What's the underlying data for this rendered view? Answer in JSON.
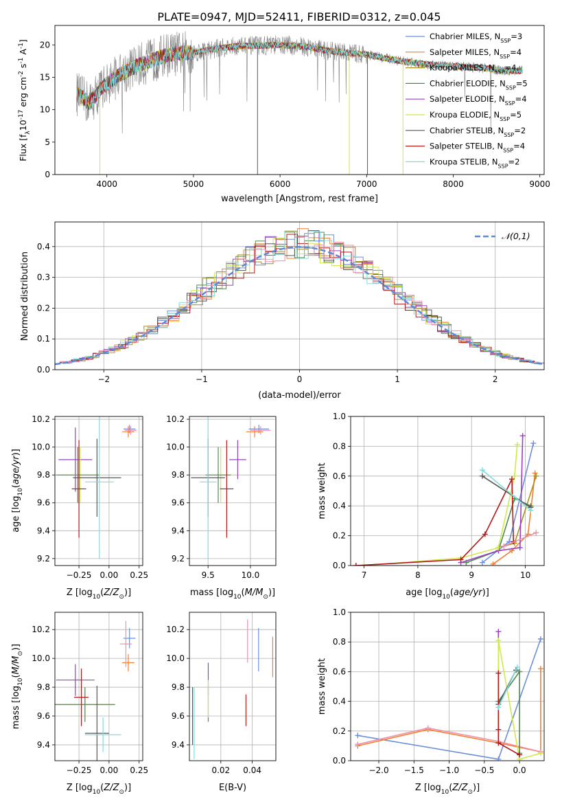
{
  "title": "PLATE=0947, MJD=52411, FIBERID=0312, z=0.045",
  "colors": [
    "#6b8fdc",
    "#f07f30",
    "#a8901a",
    "#4f8a4f",
    "#9a3fc4",
    "#cfe84a",
    "#555555",
    "#b01818",
    "#80dcdc",
    "#ef8fa8"
  ],
  "legend_spectrum": [
    {
      "label": "Chabrier MILES, N",
      "sub": "SSP",
      "tail": "=3",
      "color": "#6b8fdc"
    },
    {
      "label": "Salpeter MILES, N",
      "sub": "SSP",
      "tail": "=4",
      "color": "#f07f30"
    },
    {
      "label": "Kroupa MILES, N",
      "sub": "SSP",
      "tail": "=4",
      "color": "#a8901a"
    },
    {
      "label": "Chabrier ELODIE, N",
      "sub": "SSP",
      "tail": "=5",
      "color": "#4f8a4f"
    },
    {
      "label": "Salpeter ELODIE, N",
      "sub": "SSP",
      "tail": "=4",
      "color": "#9a3fc4"
    },
    {
      "label": "Kroupa ELODIE, N",
      "sub": "SSP",
      "tail": "=5",
      "color": "#cfe84a"
    },
    {
      "label": "Chabrier STELIB, N",
      "sub": "SSP",
      "tail": "=2",
      "color": "#555555"
    },
    {
      "label": "Salpeter STELIB, N",
      "sub": "SSP",
      "tail": "=4",
      "color": "#b01818"
    },
    {
      "label": "Kroupa STELIB, N",
      "sub": "SSP",
      "tail": "=2",
      "color": "#80dcdc"
    }
  ],
  "chart_data": [
    {
      "type": "line",
      "id": "spectrum",
      "xlabel": "wavelength [Angstrom, rest frame]",
      "ylabel_parts": [
        "Flux [f",
        "λ",
        "10",
        "-17",
        " erg cm",
        "-2",
        " s",
        "-1",
        " A",
        "-1",
        "]"
      ],
      "xlim": [
        3400,
        9050
      ],
      "ylim": [
        0,
        23
      ],
      "xticks": [
        4000,
        5000,
        6000,
        7000,
        8000,
        9000
      ],
      "yticks": [
        0,
        5,
        10,
        15,
        20
      ],
      "grid": false,
      "continuum": [
        [
          3650,
          12.5
        ],
        [
          3800,
          11
        ],
        [
          3950,
          13.5
        ],
        [
          4100,
          15
        ],
        [
          4300,
          16.5
        ],
        [
          4500,
          17.5
        ],
        [
          4700,
          18.5
        ],
        [
          5000,
          18.8
        ],
        [
          5300,
          19.5
        ],
        [
          5500,
          19.8
        ],
        [
          5800,
          19.9
        ],
        [
          6000,
          20
        ],
        [
          6300,
          19.7
        ],
        [
          6600,
          19
        ],
        [
          7000,
          18.5
        ],
        [
          7400,
          17.5
        ],
        [
          7700,
          17
        ],
        [
          8000,
          16.7
        ],
        [
          8300,
          16.5
        ],
        [
          8600,
          16
        ],
        [
          8800,
          16
        ]
      ],
      "notes": "observed spectrum (grey) with model fits; models overlap closely"
    },
    {
      "type": "step-histogram",
      "id": "residuals",
      "xlabel": "(data-model)/error",
      "ylabel": "Normed distribution",
      "xlim": [
        -2.5,
        2.5
      ],
      "ylim": [
        0,
        0.48
      ],
      "xticks": [
        -2,
        -1,
        0,
        1,
        2
      ],
      "yticks": [
        0.0,
        0.1,
        0.2,
        0.3,
        0.4
      ],
      "grid": true,
      "legend": "top-right",
      "reference_curve": {
        "label": "𝒩(0,1)",
        "mean": 0,
        "sigma": 1,
        "color": "#5b88d8"
      }
    },
    {
      "type": "errorbar",
      "id": "age-vs-Z",
      "xlabel": "Z [log10(Z/Z⊙)]",
      "ylabel": "age [log10(age/yr)]",
      "xlim": [
        -0.45,
        0.28
      ],
      "ylim": [
        9.15,
        10.22
      ],
      "xticks": [
        -0.25,
        0.0,
        0.25
      ],
      "yticks": [
        9.2,
        9.4,
        9.6,
        9.8,
        10.0,
        10.2
      ],
      "grid": true,
      "points": [
        {
          "x": 0.17,
          "y": 10.13,
          "xe": 0.05,
          "ye": 0.03,
          "c": 0
        },
        {
          "x": 0.16,
          "y": 10.11,
          "xe": 0.05,
          "ye": 0.04,
          "c": 1
        },
        {
          "x": 0.18,
          "y": 10.12,
          "xe": 0.05,
          "ye": 0.03,
          "c": 9
        },
        {
          "x": -0.28,
          "y": 9.91,
          "xe": 0.14,
          "ye": 0.23,
          "c": 4
        },
        {
          "x": -0.24,
          "y": 9.8,
          "xe": 0.18,
          "ye": 0.2,
          "c": 5
        },
        {
          "x": -0.26,
          "y": 9.8,
          "xe": 0.18,
          "ye": 0.2,
          "c": 3
        },
        {
          "x": -0.1,
          "y": 9.78,
          "xe": 0.2,
          "ye": 0.28,
          "c": 6
        },
        {
          "x": -0.25,
          "y": 9.7,
          "xe": 0.06,
          "ye": 0.35,
          "c": 7
        },
        {
          "x": -0.08,
          "y": 9.75,
          "xe": 0.12,
          "ye": 0.55,
          "c": 8
        }
      ]
    },
    {
      "type": "errorbar",
      "id": "age-vs-mass",
      "xlabel": "mass [log10(M/M⊙)]",
      "ylabel": "",
      "xlim": [
        9.28,
        10.3
      ],
      "ylim": [
        9.15,
        10.22
      ],
      "xticks": [
        9.5,
        10.0
      ],
      "xticklabels": [
        "9.5",
        "10.0"
      ],
      "yticks": [
        9.2,
        9.4,
        9.6,
        9.8,
        10.0,
        10.2
      ],
      "grid": true,
      "points": [
        {
          "x": 10.1,
          "y": 10.13,
          "xe": 0.12,
          "ye": 0.03,
          "c": 0
        },
        {
          "x": 10.05,
          "y": 10.11,
          "xe": 0.1,
          "ye": 0.04,
          "c": 1
        },
        {
          "x": 10.12,
          "y": 10.12,
          "xe": 0.12,
          "ye": 0.03,
          "c": 9
        },
        {
          "x": 9.85,
          "y": 9.91,
          "xe": 0.1,
          "ye": 0.14,
          "c": 4
        },
        {
          "x": 9.65,
          "y": 9.8,
          "xe": 0.15,
          "ye": 0.2,
          "c": 5
        },
        {
          "x": 9.62,
          "y": 9.8,
          "xe": 0.15,
          "ye": 0.2,
          "c": 3
        },
        {
          "x": 9.5,
          "y": 9.78,
          "xe": 0.2,
          "ye": 0.28,
          "c": 6
        },
        {
          "x": 9.72,
          "y": 9.7,
          "xe": 0.08,
          "ye": 0.35,
          "c": 7
        },
        {
          "x": 9.5,
          "y": 9.75,
          "xe": 0.1,
          "ye": 0.55,
          "c": 8
        }
      ]
    },
    {
      "type": "line",
      "id": "weight-vs-age",
      "xlabel": "age [log10(age/yr)]",
      "ylabel": "mass weight",
      "xlim": [
        6.75,
        10.35
      ],
      "ylim": [
        0,
        1
      ],
      "xticks": [
        7,
        8,
        9,
        10
      ],
      "yticks": [
        0.0,
        0.2,
        0.4,
        0.6,
        0.8,
        1.0
      ],
      "grid": true,
      "series": [
        {
          "c": 0,
          "x": [
            9.2,
            9.7,
            10.15
          ],
          "y": [
            0.02,
            0.16,
            0.82
          ]
        },
        {
          "c": 1,
          "x": [
            9.4,
            9.75,
            10.05,
            10.18
          ],
          "y": [
            0.01,
            0.1,
            0.21,
            0.62
          ]
        },
        {
          "c": 2,
          "x": [
            9.5,
            9.8,
            10.2
          ],
          "y": [
            0.12,
            0.15,
            0.6
          ]
        },
        {
          "c": 3,
          "x": [
            8.9,
            9.5,
            9.8,
            10.1
          ],
          "y": [
            0.02,
            0.1,
            0.45,
            0.4
          ]
        },
        {
          "c": 4,
          "x": [
            8.8,
            9.5,
            9.9,
            9.95
          ],
          "y": [
            0.02,
            0.1,
            0.12,
            0.87
          ]
        },
        {
          "c": 5,
          "x": [
            7.0,
            8.8,
            9.5,
            9.8,
            9.85
          ],
          "y": [
            0.0,
            0.05,
            0.12,
            0.6,
            0.81
          ]
        },
        {
          "c": 6,
          "x": [
            9.2,
            10.1
          ],
          "y": [
            0.6,
            0.39
          ]
        },
        {
          "c": 7,
          "x": [
            6.85,
            8.8,
            9.25,
            9.75,
            9.78
          ],
          "y": [
            0.0,
            0.04,
            0.21,
            0.58,
            0.16
          ]
        },
        {
          "c": 8,
          "x": [
            9.2,
            10.1
          ],
          "y": [
            0.64,
            0.37
          ]
        },
        {
          "c": 9,
          "x": [
            9.6,
            10.2
          ],
          "y": [
            0.13,
            0.22
          ]
        }
      ]
    },
    {
      "type": "errorbar",
      "id": "mass-vs-Z",
      "xlabel": "Z [log10(Z/Z⊙)]",
      "ylabel": "mass [log10(M/M⊙)]",
      "xlim": [
        -0.45,
        0.28
      ],
      "ylim": [
        9.29,
        10.32
      ],
      "xticks": [
        -0.25,
        0.0,
        0.25
      ],
      "yticks": [
        9.4,
        9.6,
        9.8,
        10.0,
        10.2
      ],
      "grid": true,
      "points": [
        {
          "x": 0.17,
          "y": 10.14,
          "xe": 0.05,
          "ye": 0.07,
          "c": 0
        },
        {
          "x": 0.16,
          "y": 9.97,
          "xe": 0.05,
          "ye": 0.06,
          "c": 1
        },
        {
          "x": 0.14,
          "y": 10.1,
          "xe": 0.05,
          "ye": 0.16,
          "c": 9
        },
        {
          "x": -0.28,
          "y": 9.85,
          "xe": 0.16,
          "ye": 0.11,
          "c": 4
        },
        {
          "x": -0.2,
          "y": 9.68,
          "xe": 0.25,
          "ye": 0.12,
          "c": 5
        },
        {
          "x": -0.2,
          "y": 9.68,
          "xe": 0.25,
          "ye": 0.12,
          "c": 3
        },
        {
          "x": -0.1,
          "y": 9.48,
          "xe": 0.1,
          "ye": 0.33,
          "c": 6
        },
        {
          "x": -0.23,
          "y": 9.73,
          "xe": 0.06,
          "ye": 0.2,
          "c": 7
        },
        {
          "x": -0.05,
          "y": 9.47,
          "xe": 0.15,
          "ye": 0.12,
          "c": 8
        }
      ]
    },
    {
      "type": "errorbar",
      "id": "mass-vs-EBV",
      "xlabel": "E(B-V)",
      "ylabel": "",
      "xlim": [
        0.0,
        0.055
      ],
      "ylim": [
        9.29,
        10.32
      ],
      "xticks": [
        0.02,
        0.04
      ],
      "yticks": [
        9.4,
        9.6,
        9.8,
        10.0,
        10.2
      ],
      "grid": true,
      "points": [
        {
          "x": 0.044,
          "y": 10.06,
          "xe": 0,
          "ye": 0.15,
          "c": 0
        },
        {
          "x": 0.053,
          "y": 10.01,
          "xe": 0,
          "ye": 0.14,
          "c": 1
        },
        {
          "x": 0.037,
          "y": 10.12,
          "xe": 0,
          "ye": 0.15,
          "c": 9
        },
        {
          "x": 0.012,
          "y": 9.86,
          "xe": 0,
          "ye": 0.11,
          "c": 4
        },
        {
          "x": 0.012,
          "y": 9.68,
          "xe": 0,
          "ye": 0.12,
          "c": 3
        },
        {
          "x": 0.012,
          "y": 9.72,
          "xe": 0,
          "ye": 0.13,
          "c": 5
        },
        {
          "x": 0.002,
          "y": 9.6,
          "xe": 0,
          "ye": 0.2,
          "c": 6
        },
        {
          "x": 0.036,
          "y": 9.64,
          "xe": 0,
          "ye": 0.11,
          "c": 7
        },
        {
          "x": 0.003,
          "y": 9.55,
          "xe": 0,
          "ye": 0.25,
          "c": 8
        }
      ]
    },
    {
      "type": "line",
      "id": "weight-vs-Z",
      "xlabel": "Z [log10(Z/Z⊙)]",
      "ylabel": "mass weight",
      "xlim": [
        -2.4,
        0.35
      ],
      "ylim": [
        0,
        1
      ],
      "xticks": [
        -2.0,
        -1.5,
        -1.0,
        -0.5,
        0.0
      ],
      "xticklabels": [
        "−2.0",
        "−1.5",
        "−1.0",
        "−0.5",
        "0.0"
      ],
      "yticks": [
        0.0,
        0.2,
        0.4,
        0.6,
        0.8,
        1.0
      ],
      "grid": true,
      "series": [
        {
          "c": 0,
          "x": [
            -2.3,
            -0.3,
            0.3
          ],
          "y": [
            0.17,
            0.01,
            0.82
          ]
        },
        {
          "c": 1,
          "x": [
            -2.3,
            -1.3,
            -0.3,
            0.3,
            0.3
          ],
          "y": [
            0.1,
            0.21,
            0.12,
            0.06,
            0.62
          ]
        },
        {
          "c": 9,
          "x": [
            -2.3,
            -1.3,
            -0.3,
            0.3
          ],
          "y": [
            0.11,
            0.22,
            0.13,
            0.06
          ]
        },
        {
          "c": 4,
          "x": [
            -0.3,
            -0.3
          ],
          "y": [
            0.12,
            0.87
          ]
        },
        {
          "c": 5,
          "x": [
            -0.3,
            -0.3,
            0.0,
            0.3
          ],
          "y": [
            0.12,
            0.81,
            0.01,
            0.05
          ]
        },
        {
          "c": 3,
          "x": [
            -0.3,
            0.0,
            0.0
          ],
          "y": [
            0.4,
            0.6,
            0.05
          ]
        },
        {
          "c": 6,
          "x": [
            -0.3,
            -0.05
          ],
          "y": [
            0.38,
            0.61
          ]
        },
        {
          "c": 7,
          "x": [
            -0.3,
            -0.3,
            -0.3,
            0.0
          ],
          "y": [
            0.59,
            0.21,
            0.12,
            0.04
          ]
        },
        {
          "c": 8,
          "x": [
            -0.3,
            -0.03
          ],
          "y": [
            0.36,
            0.63
          ]
        }
      ]
    }
  ]
}
